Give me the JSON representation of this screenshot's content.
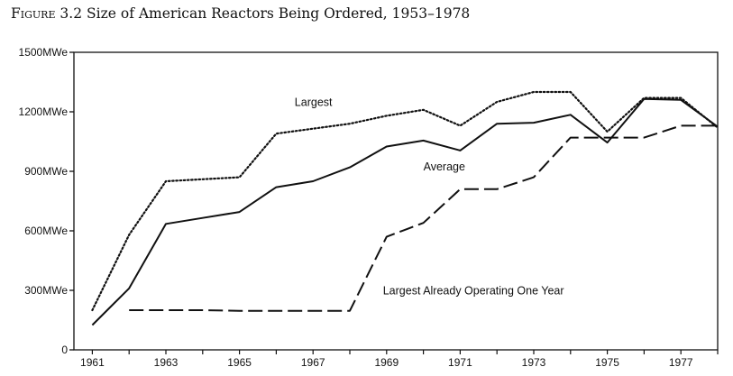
{
  "page": {
    "figure_word": "Figure",
    "figure_number": "3.2",
    "title_text": "Size of American Reactors Being Ordered, 1953–1978"
  },
  "chart_data": {
    "type": "line",
    "title": "Figure 3.2 Size of American Reactors Being Ordered, 1953–1978",
    "xlabel": "",
    "ylabel": "",
    "xlim": [
      1960.5,
      1978
    ],
    "ylim": [
      0,
      1500
    ],
    "x_ticks": [
      1961,
      1962,
      1963,
      1964,
      1965,
      1966,
      1967,
      1968,
      1969,
      1970,
      1971,
      1972,
      1973,
      1974,
      1975,
      1976,
      1977,
      1978
    ],
    "x_tick_labels": [
      "1961",
      "",
      "1963",
      "",
      "1965",
      "",
      "1967",
      "",
      "1969",
      "",
      "1971",
      "",
      "1973",
      "",
      "1975",
      "",
      "1977",
      ""
    ],
    "y_ticks": [
      0,
      300,
      600,
      900,
      1200,
      1500
    ],
    "y_tick_labels": [
      "0",
      "300MWe",
      "600MWe",
      "900MWe",
      "1200MWe",
      "1500MWe"
    ],
    "grid": false,
    "legend": "none (series labeled inline)",
    "series": [
      {
        "name": "Largest",
        "style": "dotted",
        "color": "#111111",
        "label_at": [
          1966.5,
          1230
        ],
        "points": [
          [
            1961,
            200
          ],
          [
            1962,
            580
          ],
          [
            1963,
            850
          ],
          [
            1964,
            860
          ],
          [
            1965,
            870
          ],
          [
            1966,
            1090
          ],
          [
            1967,
            1115
          ],
          [
            1968,
            1140
          ],
          [
            1969,
            1180
          ],
          [
            1970,
            1210
          ],
          [
            1971,
            1130
          ],
          [
            1972,
            1250
          ],
          [
            1973,
            1300
          ],
          [
            1974,
            1300
          ],
          [
            1975,
            1100
          ],
          [
            1976,
            1270
          ],
          [
            1977,
            1270
          ],
          [
            1978,
            1120
          ]
        ]
      },
      {
        "name": "Average",
        "style": "solid",
        "color": "#111111",
        "label_at": [
          1970,
          905
        ],
        "points": [
          [
            1961,
            125
          ],
          [
            1962,
            310
          ],
          [
            1963,
            635
          ],
          [
            1964,
            665
          ],
          [
            1965,
            695
          ],
          [
            1966,
            820
          ],
          [
            1967,
            850
          ],
          [
            1968,
            920
          ],
          [
            1969,
            1025
          ],
          [
            1970,
            1055
          ],
          [
            1971,
            1005
          ],
          [
            1972,
            1140
          ],
          [
            1973,
            1145
          ],
          [
            1974,
            1185
          ],
          [
            1975,
            1045
          ],
          [
            1976,
            1265
          ],
          [
            1977,
            1260
          ],
          [
            1978,
            1125
          ]
        ]
      },
      {
        "name": "Largest Already Operating One Year",
        "style": "dashed",
        "color": "#111111",
        "label_at": [
          1968.9,
          280
        ],
        "points": [
          [
            1962,
            200
          ],
          [
            1963,
            200
          ],
          [
            1964,
            200
          ],
          [
            1965,
            197
          ],
          [
            1966,
            197
          ],
          [
            1967,
            197
          ],
          [
            1968,
            197
          ],
          [
            1969,
            570
          ],
          [
            1970,
            640
          ],
          [
            1971,
            810
          ],
          [
            1972,
            810
          ],
          [
            1973,
            870
          ],
          [
            1974,
            1070
          ],
          [
            1975,
            1070
          ],
          [
            1976,
            1070
          ],
          [
            1977,
            1130
          ],
          [
            1978,
            1130
          ]
        ]
      }
    ]
  }
}
